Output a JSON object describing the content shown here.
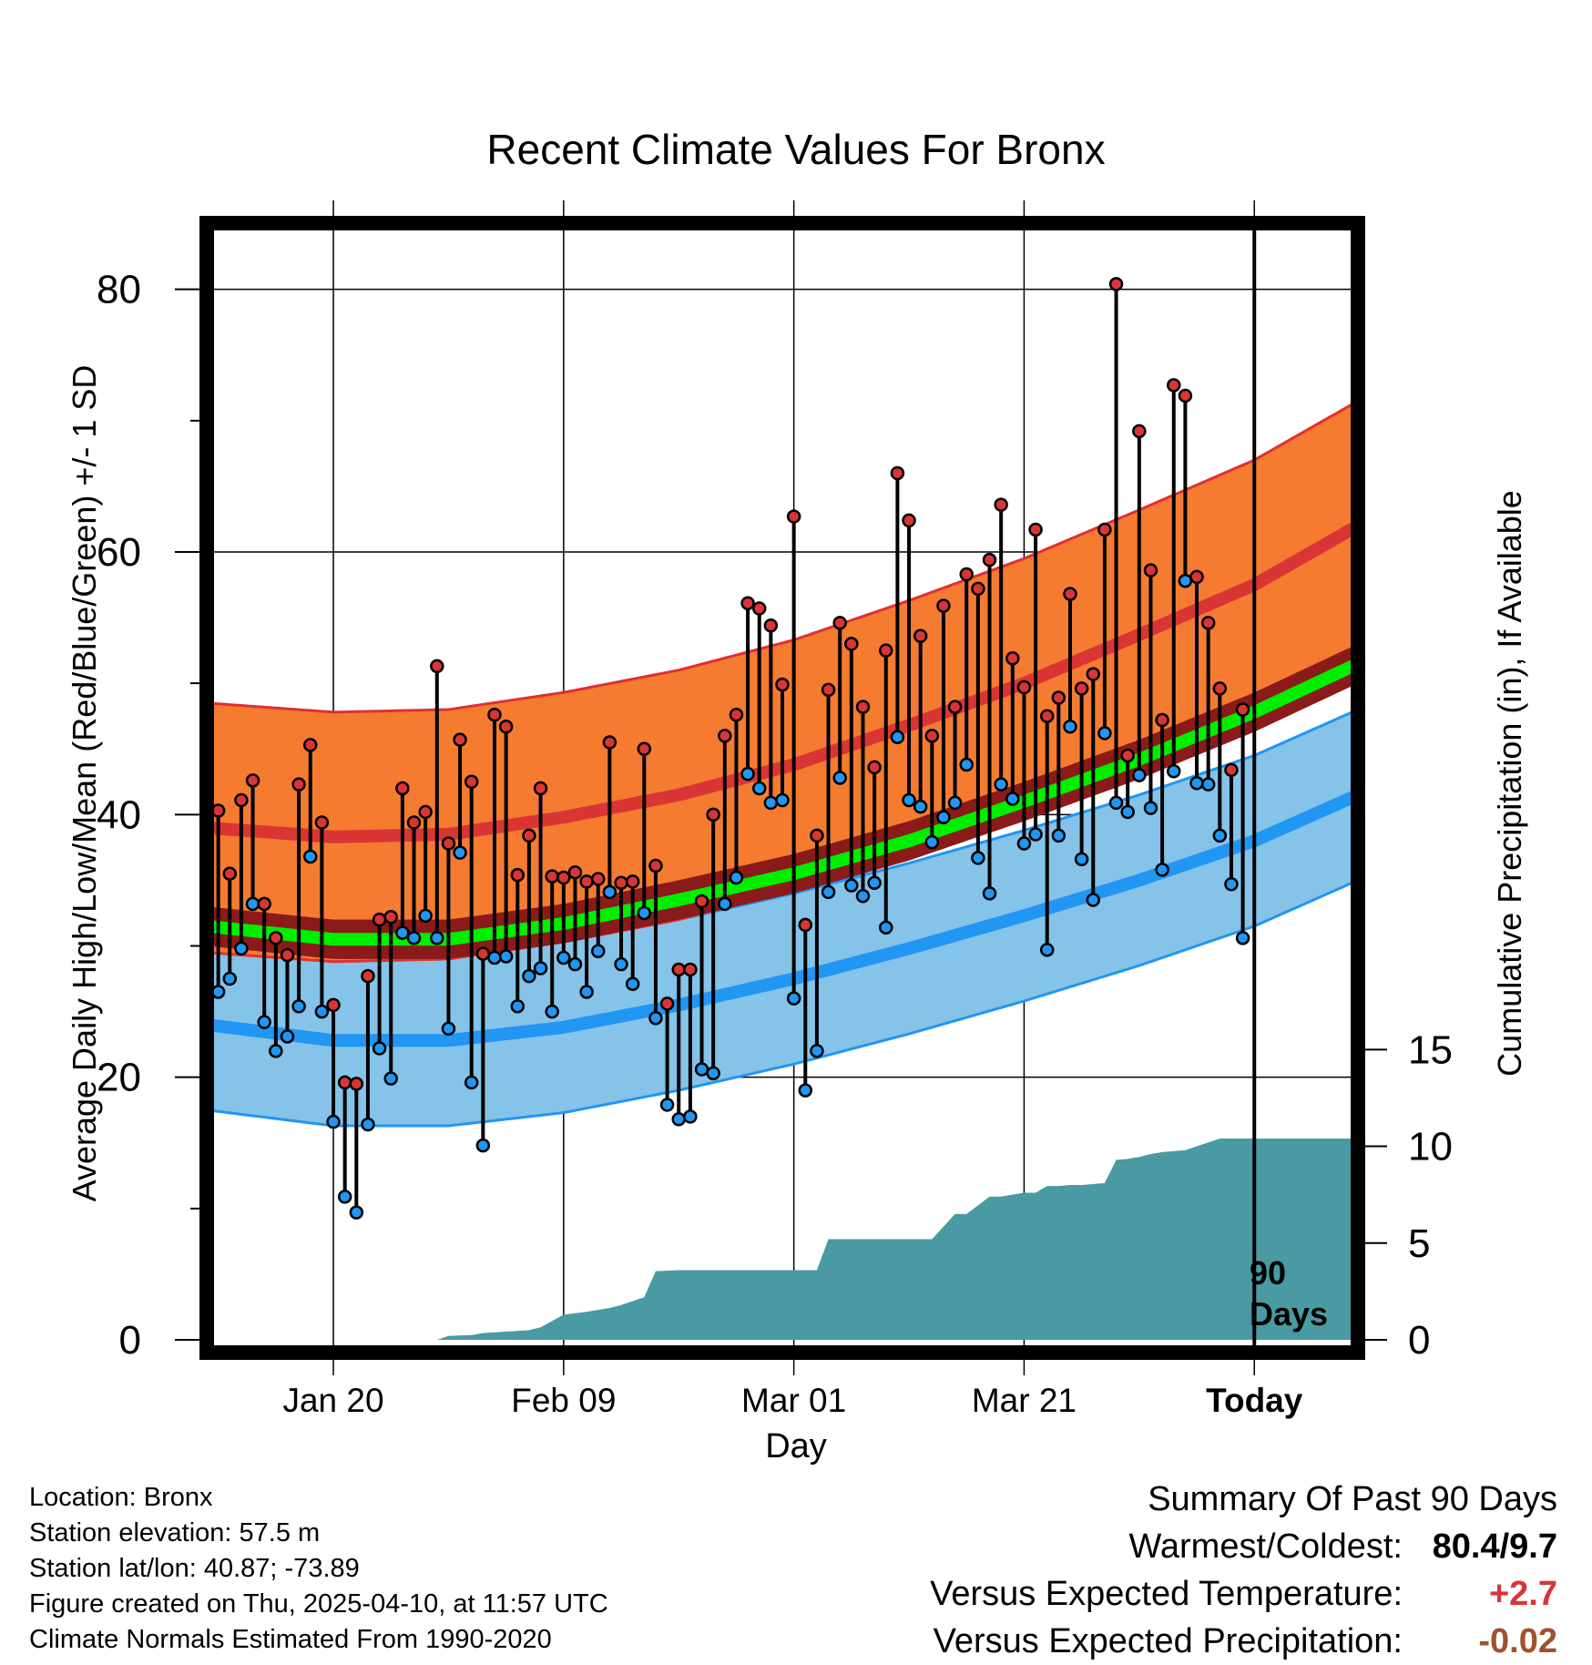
{
  "colors": {
    "high_band": "#f47b30",
    "high_band_edge": "#e03030",
    "high_mean": "#d93535",
    "low_band": "#85c3e8",
    "low_band_edge": "#2196f3",
    "low_mean": "#2196f3",
    "mean_line": "#00ee00",
    "mean_band": "#8b1a1a",
    "precip": "#4a9aa3",
    "high_dot": "#d93535",
    "low_dot": "#2196f3",
    "warm_value": "#d93535",
    "precip_value": "#a0522d"
  },
  "chart_data": {
    "type": "line",
    "title": "Recent Climate Values For Bronx",
    "xlabel": "Day",
    "ylabel": "Average Daily High/Low/Mean (Red/Blue/Green) +/- 1 SD",
    "y2label": "Cumulative Precipitation (in), If Available",
    "ylim": [
      0,
      84
    ],
    "yticks": [
      0,
      20,
      40,
      60,
      80
    ],
    "y2lim": [
      0,
      57
    ],
    "y2ticks": [
      0,
      5,
      10,
      15
    ],
    "x_range_days": [
      -91,
      9
    ],
    "xticks": [
      {
        "day": -80,
        "label": "Jan 20"
      },
      {
        "day": -60,
        "label": "Feb 09"
      },
      {
        "day": -40,
        "label": "Mar 01"
      },
      {
        "day": -20,
        "label": "Mar 21"
      },
      {
        "day": 0,
        "label": "Today"
      }
    ],
    "today_marker": {
      "day": 0,
      "label_line1": "90",
      "label_line2": "Days"
    },
    "normals": {
      "days": [
        -91,
        -80,
        -70,
        -60,
        -50,
        -40,
        -30,
        -20,
        -10,
        0,
        9
      ],
      "high_mean": [
        39.0,
        38.3,
        38.5,
        39.8,
        41.5,
        43.8,
        46.8,
        50.0,
        53.7,
        57.5,
        62.0
      ],
      "high_sd": 9.5,
      "low_mean": [
        24.0,
        22.8,
        22.8,
        23.8,
        25.5,
        27.5,
        29.8,
        32.3,
        35.0,
        38.0,
        41.5
      ],
      "low_sd": 6.5,
      "mean": [
        31.5,
        30.5,
        30.5,
        31.7,
        33.5,
        35.5,
        38.0,
        41.0,
        44.2,
        47.8,
        51.5
      ],
      "mean_sd": 1.5
    },
    "daily_days": [
      -90,
      -89,
      -88,
      -87,
      -86,
      -85,
      -84,
      -83,
      -82,
      -81,
      -80,
      -79,
      -78,
      -77,
      -76,
      -75,
      -74,
      -73,
      -72,
      -71,
      -70,
      -69,
      -68,
      -67,
      -66,
      -65,
      -64,
      -63,
      -62,
      -61,
      -60,
      -59,
      -58,
      -57,
      -56,
      -55,
      -54,
      -53,
      -52,
      -51,
      -50,
      -49,
      -48,
      -47,
      -46,
      -45,
      -44,
      -43,
      -42,
      -41,
      -40,
      -39,
      -38,
      -37,
      -36,
      -35,
      -34,
      -33,
      -32,
      -31,
      -30,
      -29,
      -28,
      -27,
      -26,
      -25,
      -24,
      -23,
      -22,
      -21,
      -20,
      -19,
      -18,
      -17,
      -16,
      -15,
      -14,
      -13,
      -12,
      -11,
      -10,
      -9,
      -8,
      -7,
      -6,
      -5,
      -4,
      -3,
      -2,
      -1
    ],
    "daily_high": [
      40.3,
      35.5,
      41.1,
      42.6,
      33.2,
      30.6,
      29.3,
      42.3,
      45.3,
      39.4,
      25.5,
      19.6,
      19.5,
      27.7,
      32.0,
      32.2,
      42.0,
      39.4,
      40.2,
      51.3,
      37.8,
      45.7,
      42.5,
      29.4,
      47.6,
      46.7,
      35.4,
      38.4,
      42.0,
      35.3,
      35.2,
      35.6,
      34.9,
      35.1,
      45.5,
      34.8,
      34.9,
      45.0,
      36.1,
      25.6,
      28.2,
      28.2,
      33.4,
      40.0,
      46.0,
      47.6,
      56.1,
      55.7,
      54.4,
      49.9,
      62.7,
      31.6,
      38.4,
      49.5,
      54.6,
      53.0,
      48.2,
      43.6,
      52.5,
      66.0,
      62.4,
      53.6,
      46.0,
      55.9,
      48.2,
      58.3,
      57.2,
      59.4,
      63.6,
      51.9,
      49.7,
      61.7,
      47.5,
      48.9,
      56.8,
      49.6,
      50.7,
      61.7,
      80.4,
      44.5,
      69.2,
      58.6,
      47.2,
      72.7,
      71.9,
      58.1,
      54.6,
      49.6,
      43.4,
      48.0
    ],
    "daily_low": [
      26.5,
      27.5,
      29.8,
      33.2,
      24.2,
      22.0,
      23.1,
      25.4,
      36.8,
      25.0,
      16.6,
      10.9,
      9.7,
      16.4,
      22.2,
      19.9,
      31.0,
      30.6,
      32.3,
      30.6,
      23.7,
      37.1,
      19.6,
      14.8,
      29.1,
      29.2,
      25.4,
      27.7,
      28.3,
      25.0,
      29.1,
      28.6,
      26.5,
      29.6,
      34.1,
      28.6,
      27.1,
      32.5,
      24.5,
      17.9,
      16.8,
      17.0,
      20.6,
      20.3,
      33.2,
      35.2,
      43.1,
      42.0,
      40.9,
      41.1,
      26.0,
      19.0,
      22.0,
      34.1,
      42.8,
      34.6,
      33.8,
      34.8,
      31.4,
      45.9,
      41.1,
      40.6,
      37.9,
      39.8,
      40.9,
      43.8,
      36.7,
      34.0,
      42.3,
      41.2,
      37.8,
      38.5,
      29.7,
      38.4,
      46.7,
      36.6,
      33.5,
      46.2,
      40.9,
      40.2,
      43.0,
      40.5,
      35.8,
      43.3,
      57.8,
      42.4,
      42.3,
      38.4,
      34.7,
      30.6
    ],
    "precip_cumulative": {
      "days": [
        -91,
        -71,
        -70,
        -68,
        -67,
        -63,
        -62,
        -60,
        -58,
        -56,
        -55,
        -53,
        -52,
        -50,
        -48,
        -42,
        -38,
        -37,
        -28,
        -26,
        -25,
        -23,
        -22,
        -20,
        -19,
        -18,
        -17,
        -16,
        -15,
        -14,
        -13,
        -12,
        -11,
        -10,
        -9,
        -8,
        -6,
        -5,
        -4,
        -3,
        -2,
        -1,
        0,
        9
      ],
      "values": [
        0,
        0,
        0.2,
        0.25,
        0.35,
        0.5,
        0.65,
        1.3,
        1.45,
        1.65,
        1.8,
        2.2,
        3.55,
        3.6,
        3.6,
        3.6,
        3.6,
        5.2,
        5.2,
        6.5,
        6.5,
        7.4,
        7.4,
        7.6,
        7.6,
        7.95,
        7.95,
        8.0,
        8.0,
        8.05,
        8.1,
        9.3,
        9.35,
        9.45,
        9.6,
        9.7,
        9.8,
        10.0,
        10.2,
        10.4,
        10.4,
        10.4,
        10.4,
        10.4
      ]
    }
  },
  "info": {
    "location": "Location: Bronx",
    "elevation": "Station elevation: 57.5 m",
    "latlon": "Station lat/lon: 40.87; -73.89",
    "created": "Figure created on Thu, 2025-04-10, at 11:57 UTC",
    "normals": "Climate Normals Estimated From 1990-2020"
  },
  "summary": {
    "title": "Summary Of Past 90 Days",
    "warmest_label": "Warmest/Coldest:",
    "warmest_value": "80.4/9.7",
    "temp_label": "Versus Expected Temperature:",
    "temp_value": "+2.7",
    "precip_label": "Versus Expected Precipitation:",
    "precip_value": "-0.02"
  }
}
